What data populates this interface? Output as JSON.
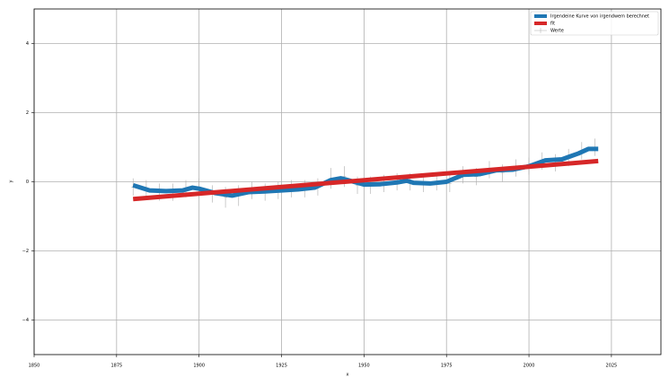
{
  "chart_data": {
    "type": "line",
    "xlabel": "x",
    "ylabel": "y",
    "xlim": [
      1850,
      2040
    ],
    "ylim": [
      -5,
      5
    ],
    "xticks": [
      1850,
      1875,
      1900,
      1925,
      1950,
      1975,
      2000,
      2025
    ],
    "yticks": [
      {
        "value": -4,
        "label": "−4"
      },
      {
        "value": -2,
        "label": "−2"
      },
      0,
      2,
      4
    ],
    "grid": true,
    "legend": "upper right",
    "series": [
      {
        "name": "Irgendeine Kurve von irgendwem berechnet",
        "color": "#1f77b4",
        "style": "line",
        "x": [
          1880,
          1885,
          1890,
          1895,
          1898,
          1900,
          1905,
          1910,
          1915,
          1920,
          1925,
          1930,
          1935,
          1940,
          1943,
          1945,
          1950,
          1955,
          1960,
          1963,
          1965,
          1970,
          1975,
          1980,
          1985,
          1990,
          1995,
          2000,
          2005,
          2010,
          2015,
          2018,
          2021
        ],
        "values": [
          -0.1,
          -0.25,
          -0.27,
          -0.25,
          -0.17,
          -0.2,
          -0.33,
          -0.4,
          -0.3,
          -0.28,
          -0.25,
          -0.22,
          -0.17,
          0.05,
          0.1,
          0.05,
          -0.08,
          -0.07,
          -0.02,
          0.03,
          -0.03,
          -0.05,
          0.0,
          0.2,
          0.22,
          0.33,
          0.35,
          0.45,
          0.62,
          0.65,
          0.82,
          0.95,
          0.95
        ]
      },
      {
        "name": "fit",
        "color": "#d62728",
        "style": "line",
        "x": [
          1880,
          2021
        ],
        "values": [
          -0.5,
          0.6
        ]
      },
      {
        "name": "Werte",
        "color": "#aaaaaa",
        "style": "errorbar",
        "x": [
          1880,
          1884,
          1888,
          1892,
          1896,
          1900,
          1904,
          1908,
          1912,
          1916,
          1920,
          1924,
          1928,
          1932,
          1936,
          1940,
          1944,
          1948,
          1952,
          1956,
          1960,
          1964,
          1968,
          1972,
          1976,
          1980,
          1984,
          1988,
          1992,
          1996,
          2000,
          2004,
          2008,
          2012,
          2016,
          2020
        ],
        "values": [
          -0.15,
          -0.2,
          -0.3,
          -0.3,
          -0.2,
          -0.15,
          -0.35,
          -0.45,
          -0.4,
          -0.25,
          -0.3,
          -0.25,
          -0.2,
          -0.2,
          -0.15,
          0.1,
          0.15,
          -0.1,
          -0.1,
          -0.05,
          0.0,
          0.0,
          -0.05,
          0.0,
          -0.05,
          0.2,
          0.15,
          0.35,
          0.25,
          0.4,
          0.45,
          0.6,
          0.55,
          0.7,
          0.9,
          1.0
        ],
        "errors": [
          0.25,
          0.25,
          0.25,
          0.25,
          0.25,
          0.25,
          0.25,
          0.3,
          0.3,
          0.25,
          0.25,
          0.25,
          0.25,
          0.25,
          0.25,
          0.3,
          0.3,
          0.25,
          0.25,
          0.25,
          0.25,
          0.25,
          0.25,
          0.25,
          0.25,
          0.25,
          0.25,
          0.25,
          0.25,
          0.25,
          0.25,
          0.25,
          0.25,
          0.25,
          0.25,
          0.25
        ]
      }
    ]
  }
}
